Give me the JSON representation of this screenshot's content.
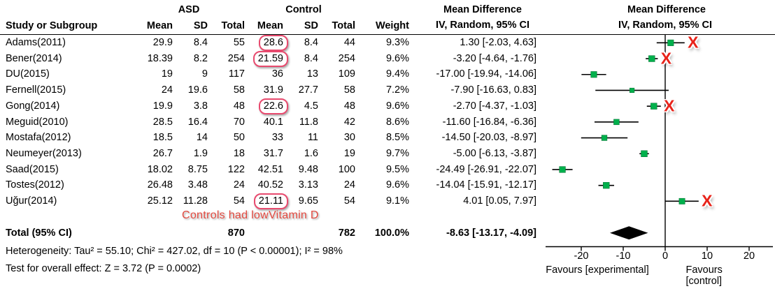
{
  "colors": {
    "marker_green": "#00b04c",
    "ci_line_black": "#000000",
    "diamond_black": "#000000",
    "x_red": "#e8231a",
    "box_pink": "#e84a6e",
    "annotation_red": "#e0473d"
  },
  "header": {
    "group_asd": "ASD",
    "group_control": "Control",
    "col_study": "Study or Subgroup",
    "col_mean": "Mean",
    "col_sd": "SD",
    "col_total": "Total",
    "col_weight": "Weight",
    "md_title": "Mean Difference",
    "md_subtitle": "IV, Random, 95% CI",
    "md_title_plot": "Mean Difference",
    "md_subtitle_plot": "IV, Random, 95% CI"
  },
  "studies": [
    {
      "name": "Adams(2011)",
      "mean1": "29.9",
      "sd1": "8.4",
      "total1": "55",
      "mean2": "28.6",
      "sd2": "8.4",
      "total2": "44",
      "weight": "9.3%",
      "ci": "1.30 [-2.03, 4.63]",
      "boxed": true,
      "x_mark": true
    },
    {
      "name": "Bener(2014)",
      "mean1": "18.39",
      "sd1": "8.2",
      "total1": "254",
      "mean2": "21.59",
      "sd2": "8.4",
      "total2": "254",
      "weight": "9.6%",
      "ci": "-3.20 [-4.64, -1.76]",
      "boxed": true,
      "x_mark": true
    },
    {
      "name": "DU(2015)",
      "mean1": "19",
      "sd1": "9",
      "total1": "117",
      "mean2": "36",
      "sd2": "13",
      "total2": "109",
      "weight": "9.4%",
      "ci": "-17.00 [-19.94, -14.06]",
      "boxed": false,
      "x_mark": false
    },
    {
      "name": "Fernell(2015)",
      "mean1": "24",
      "sd1": "19.6",
      "total1": "58",
      "mean2": "31.9",
      "sd2": "27.7",
      "total2": "58",
      "weight": "7.2%",
      "ci": "-7.90 [-16.63, 0.83]",
      "boxed": false,
      "x_mark": false
    },
    {
      "name": "Gong(2014)",
      "mean1": "19.9",
      "sd1": "3.8",
      "total1": "48",
      "mean2": "22.6",
      "sd2": "4.5",
      "total2": "48",
      "weight": "9.6%",
      "ci": "-2.70 [-4.37, -1.03]",
      "boxed": true,
      "x_mark": true
    },
    {
      "name": "Meguid(2010)",
      "mean1": "28.5",
      "sd1": "16.4",
      "total1": "70",
      "mean2": "40.1",
      "sd2": "11.8",
      "total2": "42",
      "weight": "8.6%",
      "ci": "-11.60 [-16.84, -6.36]",
      "boxed": false,
      "x_mark": false
    },
    {
      "name": "Mostafa(2012)",
      "mean1": "18.5",
      "sd1": "14",
      "total1": "50",
      "mean2": "33",
      "sd2": "11",
      "total2": "30",
      "weight": "8.5%",
      "ci": "-14.50 [-20.03, -8.97]",
      "boxed": false,
      "x_mark": false
    },
    {
      "name": "Neumeyer(2013)",
      "mean1": "26.7",
      "sd1": "1.9",
      "total1": "18",
      "mean2": "31.7",
      "sd2": "1.6",
      "total2": "19",
      "weight": "9.7%",
      "ci": "-5.00 [-6.13, -3.87]",
      "boxed": false,
      "x_mark": false
    },
    {
      "name": "Saad(2015)",
      "mean1": "18.02",
      "sd1": "8.75",
      "total1": "122",
      "mean2": "42.51",
      "sd2": "9.48",
      "total2": "100",
      "weight": "9.5%",
      "ci": "-24.49 [-26.91, -22.07]",
      "boxed": false,
      "x_mark": false
    },
    {
      "name": "Tostes(2012)",
      "mean1": "26.48",
      "sd1": "3.48",
      "total1": "24",
      "mean2": "40.52",
      "sd2": "3.13",
      "total2": "24",
      "weight": "9.6%",
      "ci": "-14.04 [-15.91, -12.17]",
      "boxed": false,
      "x_mark": false
    },
    {
      "name": "Uğur(2014)",
      "mean1": "25.12",
      "sd1": "11.28",
      "total1": "54",
      "mean2": "21.11",
      "sd2": "9.65",
      "total2": "54",
      "weight": "9.1%",
      "ci": "4.01 [0.05, 7.97]",
      "boxed": true,
      "x_mark": true
    }
  ],
  "annotation": {
    "text": "Controls had lowVitamin D"
  },
  "total": {
    "label": "Total (95% CI)",
    "total_asd": "870",
    "total_control": "782",
    "weight": "100.0%",
    "ci_text": "-8.63 [-13.17, -4.09]"
  },
  "footer": {
    "heterogeneity": "Heterogeneity: Tau² = 55.10; Chi² = 427.02, df = 10 (P < 0.00001); I² = 98%",
    "overall_effect": "Test for overall effect: Z = 3.72 (P = 0.0002)"
  },
  "axis": {
    "favours_left": "Favours [experimental]",
    "favours_right": "Favours [control]"
  },
  "chart_data": {
    "type": "scatter",
    "subtype": "forest-plot-mean-difference",
    "title": "Mean Difference  IV, Random, 95% CI",
    "xlabel": "Mean Difference",
    "x_ticks": [
      -20,
      -10,
      0,
      10,
      20
    ],
    "xlim": [
      -28.5,
      26
    ],
    "zero_line": 0,
    "grid": false,
    "marker_shape": "green-square",
    "series": [
      {
        "name": "Adams(2011)",
        "md": 1.3,
        "ci": [
          -2.03,
          4.63
        ],
        "weight": 9.3
      },
      {
        "name": "Bener(2014)",
        "md": -3.2,
        "ci": [
          -4.64,
          -1.76
        ],
        "weight": 9.6
      },
      {
        "name": "DU(2015)",
        "md": -17.0,
        "ci": [
          -19.94,
          -14.06
        ],
        "weight": 9.4
      },
      {
        "name": "Fernell(2015)",
        "md": -7.9,
        "ci": [
          -16.63,
          0.83
        ],
        "weight": 7.2
      },
      {
        "name": "Gong(2014)",
        "md": -2.7,
        "ci": [
          -4.37,
          -1.03
        ],
        "weight": 9.6
      },
      {
        "name": "Meguid(2010)",
        "md": -11.6,
        "ci": [
          -16.84,
          -6.36
        ],
        "weight": 8.6
      },
      {
        "name": "Mostafa(2012)",
        "md": -14.5,
        "ci": [
          -20.03,
          -8.97
        ],
        "weight": 8.5
      },
      {
        "name": "Neumeyer(2013)",
        "md": -5.0,
        "ci": [
          -6.13,
          -3.87
        ],
        "weight": 9.7
      },
      {
        "name": "Saad(2015)",
        "md": -24.49,
        "ci": [
          -26.91,
          -22.07
        ],
        "weight": 9.5
      },
      {
        "name": "Tostes(2012)",
        "md": -14.04,
        "ci": [
          -15.91,
          -12.17
        ],
        "weight": 9.6
      },
      {
        "name": "Uğur(2014)",
        "md": 4.01,
        "ci": [
          0.05,
          7.97
        ],
        "weight": 9.1
      }
    ],
    "total_diamond": {
      "name": "Total (95% CI)",
      "md": -8.63,
      "ci": [
        -13.17,
        -4.09
      ],
      "weight": 100.0
    },
    "red_x_marked_rows": [
      "Adams(2011)",
      "Bener(2014)",
      "Gong(2014)",
      "Uğur(2014)"
    ]
  }
}
